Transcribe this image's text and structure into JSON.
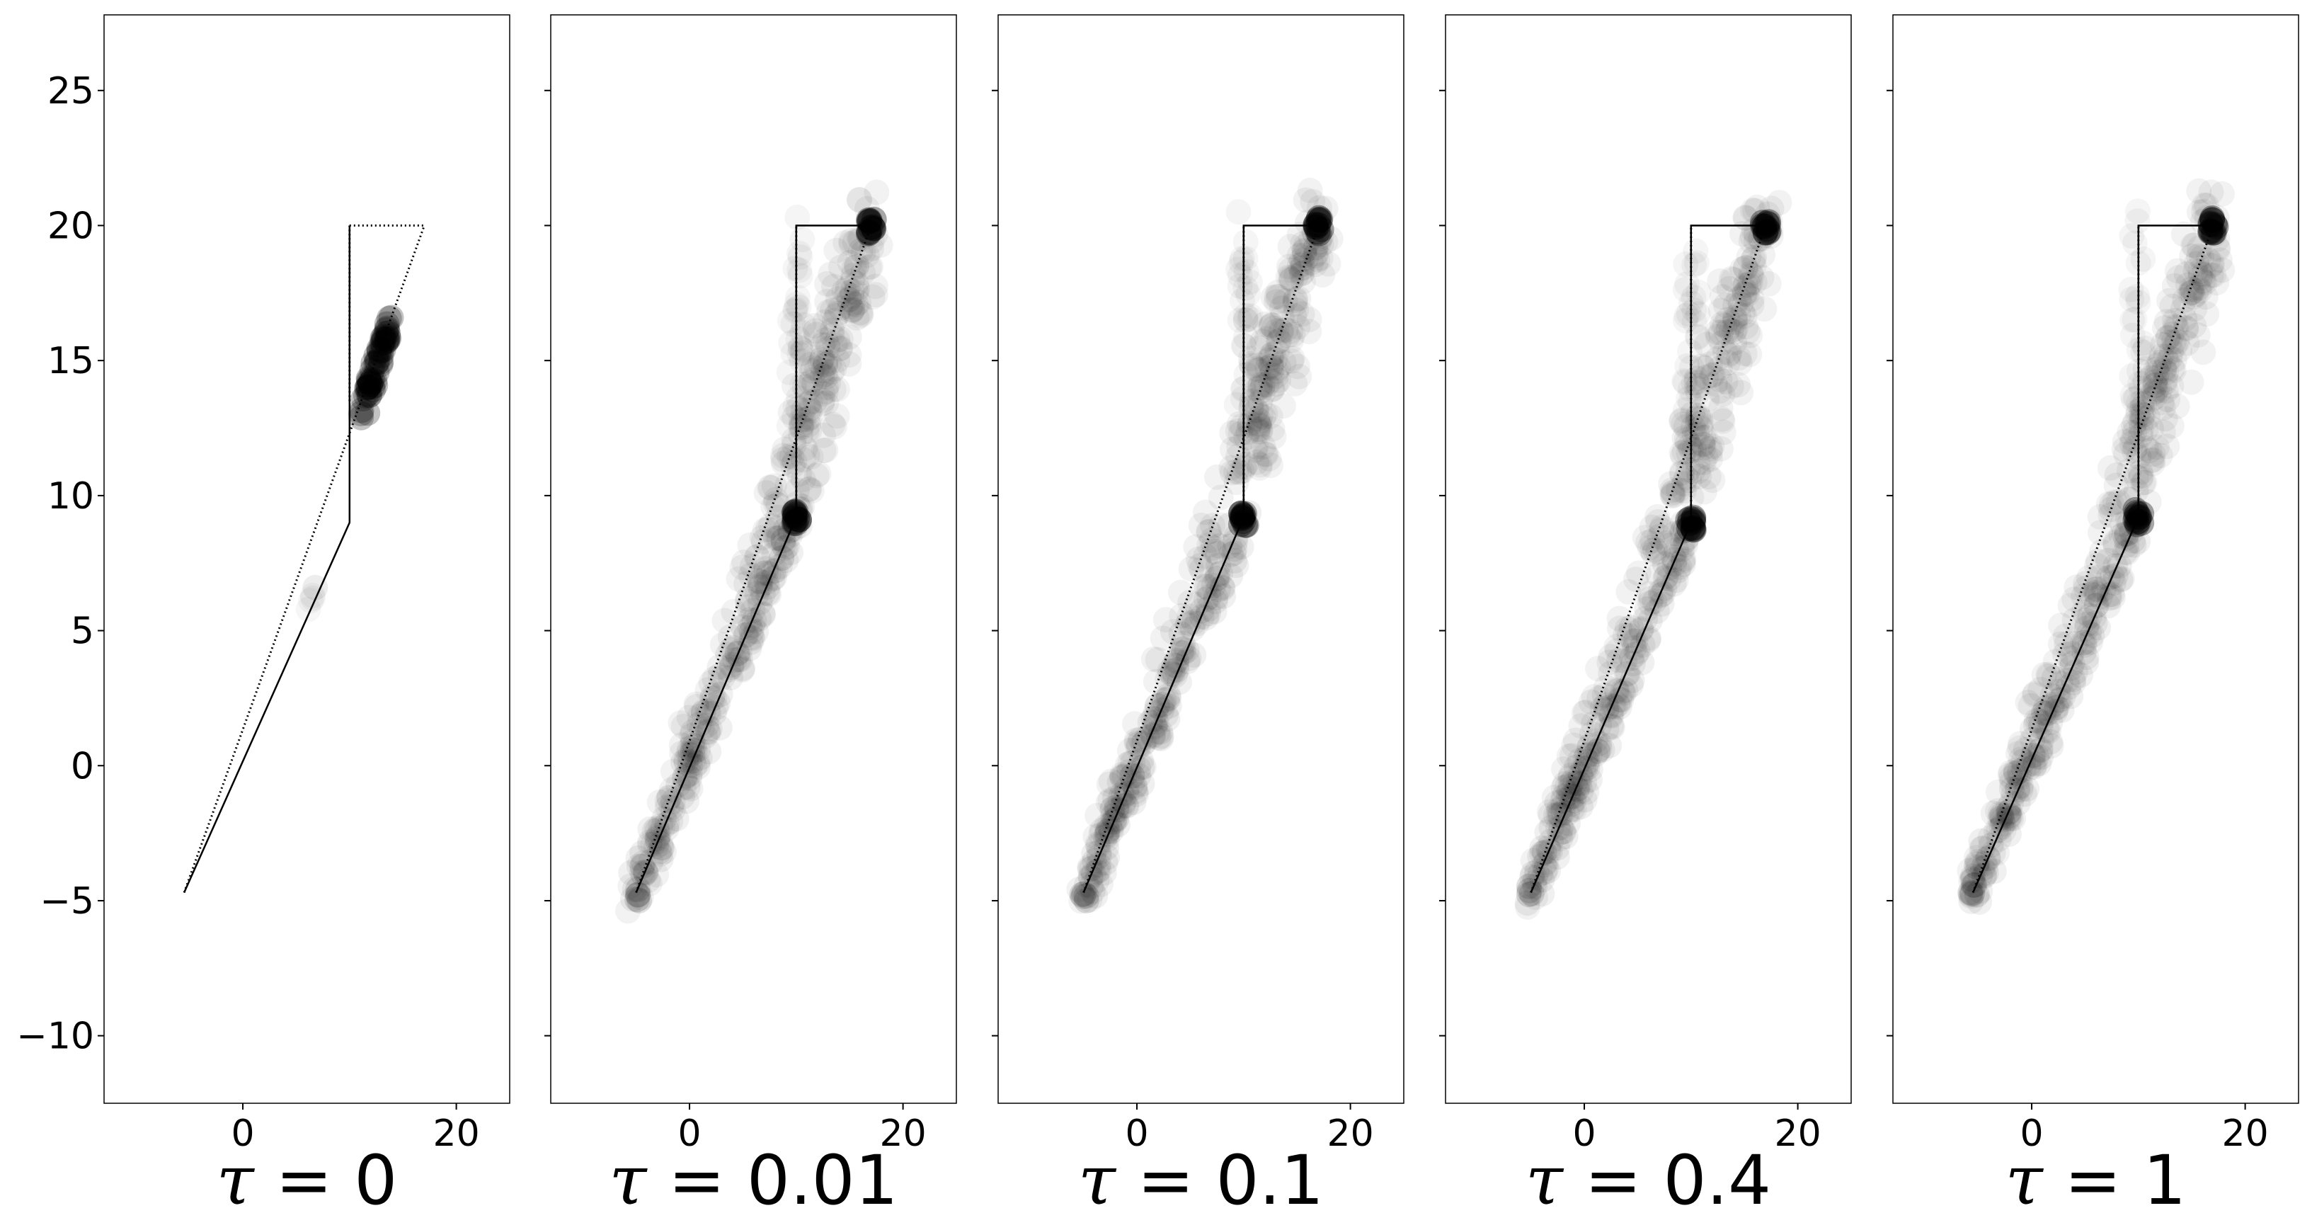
{
  "chart_data": [
    {
      "type": "scatter",
      "title": "τ = 0",
      "title_symbol": "τ",
      "title_value": "0",
      "xlim": [
        -13,
        25
      ],
      "ylim": [
        -12.5,
        27.8
      ],
      "xticks": [
        0,
        20
      ],
      "yticks": [
        -10,
        -5,
        0,
        5,
        10,
        15,
        20,
        25
      ],
      "show_ytick_labels": true,
      "grid": false,
      "paths": [
        {
          "name": "",
          "style": "solid",
          "x": [
            -5.5,
            10,
            10,
            10
          ],
          "y": [
            -4.7,
            9,
            13.5,
            20
          ]
        },
        {
          "name": "",
          "style": "dotted",
          "x": [
            -5.5,
            17
          ],
          "y": [
            -4.7,
            20
          ]
        },
        {
          "name": "",
          "style": "dotted",
          "x": [
            10,
            17
          ],
          "y": [
            20,
            20
          ]
        },
        {
          "name": "",
          "style": "dotted",
          "x": [
            10,
            10
          ],
          "y": [
            13.5,
            20
          ]
        }
      ],
      "cloud": {
        "description": "",
        "clusters": [
          {
            "x": [
              11.2,
              13.8
            ],
            "y": [
              13.0,
              16.5
            ],
            "density": 0.95,
            "count": 60
          },
          {
            "x": [
              5.6,
              7.2
            ],
            "y": [
              5.6,
              6.8
            ],
            "density": 0.15,
            "count": 6
          }
        ]
      }
    },
    {
      "type": "scatter",
      "title": "τ = 0.01",
      "title_symbol": "τ",
      "title_value": "0.01",
      "xlim": [
        -13,
        25
      ],
      "ylim": [
        -12.5,
        27.8
      ],
      "xticks": [
        0,
        20
      ],
      "yticks": [
        -10,
        -5,
        0,
        5,
        10,
        15,
        20,
        25
      ],
      "show_ytick_labels": false,
      "grid": false,
      "paths": [
        {
          "name": "",
          "style": "solid",
          "x": [
            -5,
            10,
            10,
            17
          ],
          "y": [
            -4.7,
            9.2,
            20,
            20
          ]
        },
        {
          "name": "",
          "style": "dotted",
          "x": [
            -5,
            17
          ],
          "y": [
            -4.7,
            20
          ]
        },
        {
          "name": "",
          "style": "dotted",
          "x": [
            10,
            10
          ],
          "y": [
            9.2,
            20
          ]
        }
      ],
      "cloud": {
        "endpoints": [
          [
            -5,
            -4.7
          ],
          [
            10,
            9.2
          ],
          [
            17,
            20
          ]
        ],
        "band": [
          [
            -5,
            -4.7
          ],
          [
            10,
            9.2
          ],
          [
            17,
            20
          ]
        ]
      }
    },
    {
      "type": "scatter",
      "title": "τ = 0.1",
      "title_symbol": "τ",
      "title_value": "0.1",
      "xlim": [
        -13,
        25
      ],
      "ylim": [
        -12.5,
        27.8
      ],
      "xticks": [
        0,
        20
      ],
      "yticks": [
        -10,
        -5,
        0,
        5,
        10,
        15,
        20,
        25
      ],
      "show_ytick_labels": false,
      "grid": false,
      "paths": [
        {
          "name": "",
          "style": "solid",
          "x": [
            -5,
            10,
            10,
            17
          ],
          "y": [
            -4.7,
            9.2,
            20,
            20
          ]
        },
        {
          "name": "",
          "style": "dotted",
          "x": [
            -5,
            17
          ],
          "y": [
            -4.7,
            20
          ]
        },
        {
          "name": "",
          "style": "dotted",
          "x": [
            10,
            10
          ],
          "y": [
            9.2,
            20
          ]
        }
      ],
      "cloud": {
        "endpoints": [
          [
            -5,
            -4.7
          ],
          [
            10,
            9.2
          ],
          [
            17,
            20
          ]
        ],
        "band": [
          [
            -5,
            -4.7
          ],
          [
            10,
            9.2
          ],
          [
            17,
            20
          ]
        ]
      }
    },
    {
      "type": "scatter",
      "title": "τ = 0.4",
      "title_symbol": "τ",
      "title_value": "0.4",
      "xlim": [
        -13,
        25
      ],
      "ylim": [
        -12.5,
        27.8
      ],
      "xticks": [
        0,
        20
      ],
      "yticks": [
        -10,
        -5,
        0,
        5,
        10,
        15,
        20,
        25
      ],
      "show_ytick_labels": false,
      "grid": false,
      "paths": [
        {
          "name": "",
          "style": "solid",
          "x": [
            -5,
            10,
            10,
            17
          ],
          "y": [
            -4.7,
            9,
            20,
            20
          ]
        },
        {
          "name": "",
          "style": "dotted",
          "x": [
            -5,
            17
          ],
          "y": [
            -4.7,
            20
          ]
        },
        {
          "name": "",
          "style": "dotted",
          "x": [
            10,
            10
          ],
          "y": [
            9,
            20
          ]
        }
      ],
      "cloud": {
        "endpoints": [
          [
            -5,
            -4.7
          ],
          [
            10,
            9
          ],
          [
            17,
            20
          ]
        ],
        "band": [
          [
            -5,
            -4.7
          ],
          [
            10,
            9
          ],
          [
            17,
            20
          ]
        ]
      }
    },
    {
      "type": "scatter",
      "title": "τ = 1",
      "title_symbol": "τ",
      "title_value": "1",
      "xlim": [
        -13,
        25
      ],
      "ylim": [
        -12.5,
        27.8
      ],
      "xticks": [
        0,
        20
      ],
      "yticks": [
        -10,
        -5,
        0,
        5,
        10,
        15,
        20,
        25
      ],
      "show_ytick_labels": false,
      "grid": false,
      "paths": [
        {
          "name": "",
          "style": "solid",
          "x": [
            -5.5,
            10,
            10,
            17
          ],
          "y": [
            -4.7,
            9.2,
            20,
            20
          ]
        },
        {
          "name": "",
          "style": "dotted",
          "x": [
            -5.5,
            17
          ],
          "y": [
            -4.7,
            20
          ]
        },
        {
          "name": "",
          "style": "dotted",
          "x": [
            10,
            10
          ],
          "y": [
            9.2,
            20
          ]
        }
      ],
      "cloud": {
        "endpoints": [
          [
            -5.5,
            -4.7
          ],
          [
            10,
            9.2
          ],
          [
            17,
            20
          ]
        ],
        "band": [
          [
            -5.5,
            -4.7
          ],
          [
            10,
            9.2
          ],
          [
            17,
            20
          ]
        ]
      }
    }
  ]
}
